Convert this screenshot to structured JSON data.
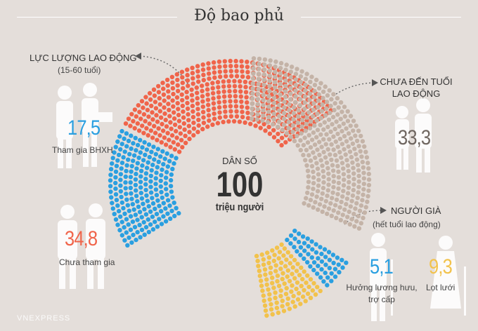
{
  "title": "Độ bao phủ",
  "center": {
    "top_label": "DÂN SỐ",
    "value": "100",
    "unit": "triệu người"
  },
  "labor_force": {
    "heading": "LỰC LƯỢNG LAO ĐỘNG",
    "subheading": "(15-60 tuổi)",
    "participating": {
      "value": "17,5",
      "label": "Tham gia BHXH"
    },
    "not_participating": {
      "value": "34,8",
      "label": "Chưa tham gia"
    }
  },
  "under_working_age": {
    "heading_line1": "CHƯA ĐẾN TUỔI",
    "heading_line2": "LAO ĐỘNG",
    "value": "33,3"
  },
  "elderly": {
    "heading": "NGƯỜI GIÀ",
    "subheading": "(hết tuổi lao động)",
    "pension": {
      "value": "5,1",
      "label_line1": "Hưởng lương hưu,",
      "label_line2": "trợ cấp"
    },
    "uncovered": {
      "value": "9,3",
      "label": "Lọt lưới"
    }
  },
  "watermark": "VNEXPRESS",
  "chart_data": {
    "type": "pie",
    "style": "dotted donut (exploded segments)",
    "unit": "million people",
    "total": 100,
    "segments": [
      {
        "name": "Lực lượng lao động - Tham gia BHXH",
        "value": 17.5,
        "color": "#2a9fe0"
      },
      {
        "name": "Lực lượng lao động - Chưa tham gia",
        "value": 34.8,
        "color": "#f0644a"
      },
      {
        "name": "Người già - Hưởng lương hưu, trợ cấp",
        "value": 5.1,
        "color": "#2a9fe0"
      },
      {
        "name": "Người già - Lọt lưới",
        "value": 9.3,
        "color": "#f2c24c"
      },
      {
        "name": "Chưa đến tuổi lao động",
        "value": 33.3,
        "color": "#c4b3a7"
      }
    ]
  },
  "colors": {
    "background": "#e4deda",
    "blue": "#2a9fe0",
    "red": "#f0644a",
    "yellow": "#f2c24c",
    "beige": "#c4b3a7",
    "silhouette": "#ffffff"
  }
}
